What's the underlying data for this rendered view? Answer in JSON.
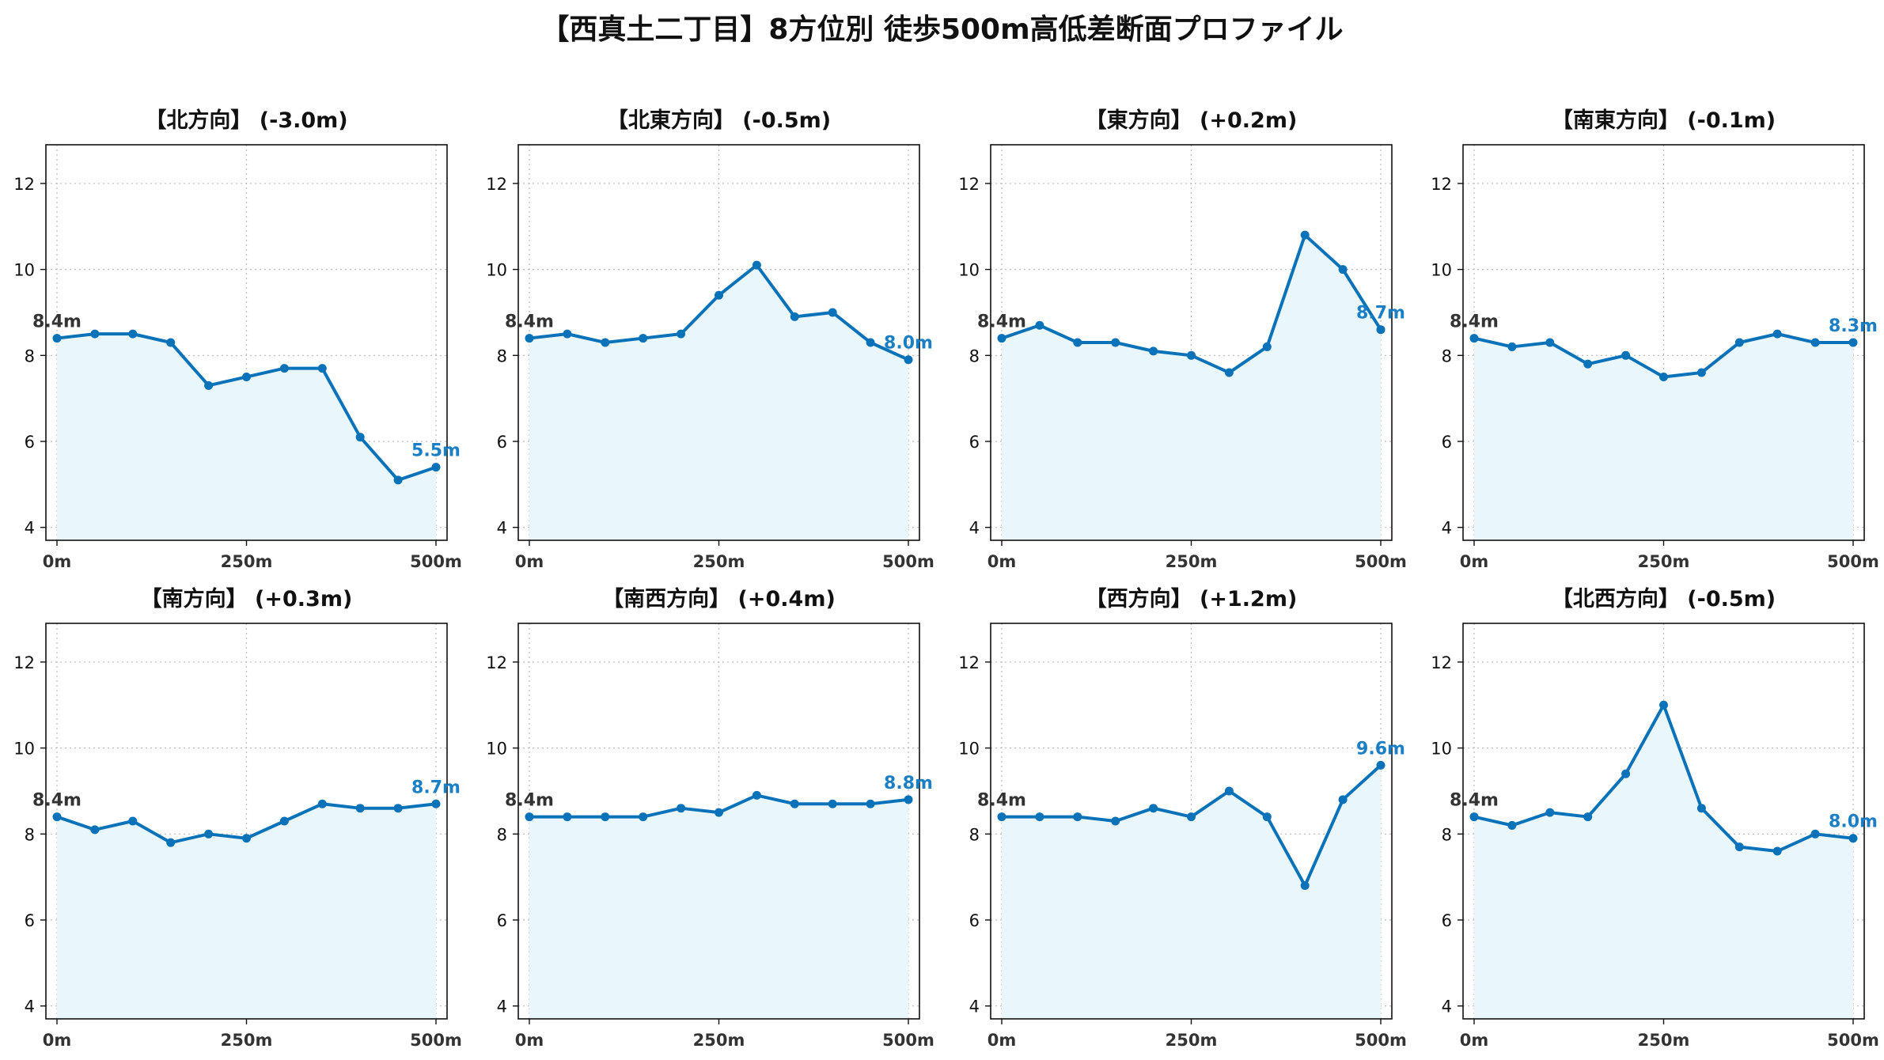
{
  "title": "【西真土二丁目】8方位別 徒歩500m高低差断面プロファイル",
  "colors": {
    "line": "#0a72b8",
    "fill": "#e9f6fb",
    "start_label": "#333333",
    "end_label": "#1a7fc4",
    "grid": "#bbbbbb"
  },
  "chart_data": [
    {
      "type": "line",
      "title": "【北方向】 (-3.0m)",
      "x": [
        0,
        50,
        100,
        150,
        200,
        250,
        300,
        350,
        400,
        450,
        500
      ],
      "y": [
        8.4,
        8.5,
        8.5,
        8.3,
        7.3,
        7.5,
        7.7,
        7.7,
        6.1,
        5.1,
        5.4
      ],
      "start_label": "8.4m",
      "end_label": "5.5m",
      "xticks": [
        "0m",
        "250m",
        "500m"
      ],
      "yticks": [
        4,
        6,
        8,
        10,
        12
      ],
      "ylim": [
        3.7,
        12.9
      ],
      "xlim": [
        0,
        500
      ],
      "grid": true
    },
    {
      "type": "line",
      "title": "【北東方向】 (-0.5m)",
      "x": [
        0,
        50,
        100,
        150,
        200,
        250,
        300,
        350,
        400,
        450,
        500
      ],
      "y": [
        8.4,
        8.5,
        8.3,
        8.4,
        8.5,
        9.4,
        10.1,
        8.9,
        9.0,
        8.3,
        7.9
      ],
      "start_label": "8.4m",
      "end_label": "8.0m",
      "xticks": [
        "0m",
        "250m",
        "500m"
      ],
      "yticks": [
        4,
        6,
        8,
        10,
        12
      ],
      "ylim": [
        3.7,
        12.9
      ],
      "xlim": [
        0,
        500
      ],
      "grid": true
    },
    {
      "type": "line",
      "title": "【東方向】 (+0.2m)",
      "x": [
        0,
        50,
        100,
        150,
        200,
        250,
        300,
        350,
        400,
        450,
        500
      ],
      "y": [
        8.4,
        8.7,
        8.3,
        8.3,
        8.1,
        8.0,
        7.6,
        8.2,
        10.8,
        10.0,
        8.6
      ],
      "start_label": "8.4m",
      "end_label": "8.7m",
      "xticks": [
        "0m",
        "250m",
        "500m"
      ],
      "yticks": [
        4,
        6,
        8,
        10,
        12
      ],
      "ylim": [
        3.7,
        12.9
      ],
      "xlim": [
        0,
        500
      ],
      "grid": true
    },
    {
      "type": "line",
      "title": "【南東方向】 (-0.1m)",
      "x": [
        0,
        50,
        100,
        150,
        200,
        250,
        300,
        350,
        400,
        450,
        500
      ],
      "y": [
        8.4,
        8.2,
        8.3,
        7.8,
        8.0,
        7.5,
        7.6,
        8.3,
        8.5,
        8.3,
        8.3
      ],
      "start_label": "8.4m",
      "end_label": "8.3m",
      "xticks": [
        "0m",
        "250m",
        "500m"
      ],
      "yticks": [
        4,
        6,
        8,
        10,
        12
      ],
      "ylim": [
        3.7,
        12.9
      ],
      "xlim": [
        0,
        500
      ],
      "grid": true
    },
    {
      "type": "line",
      "title": "【南方向】 (+0.3m)",
      "x": [
        0,
        50,
        100,
        150,
        200,
        250,
        300,
        350,
        400,
        450,
        500
      ],
      "y": [
        8.4,
        8.1,
        8.3,
        7.8,
        8.0,
        7.9,
        8.3,
        8.7,
        8.6,
        8.6,
        8.7
      ],
      "start_label": "8.4m",
      "end_label": "8.7m",
      "xticks": [
        "0m",
        "250m",
        "500m"
      ],
      "yticks": [
        4,
        6,
        8,
        10,
        12
      ],
      "ylim": [
        3.7,
        12.9
      ],
      "xlim": [
        0,
        500
      ],
      "grid": true
    },
    {
      "type": "line",
      "title": "【南西方向】 (+0.4m)",
      "x": [
        0,
        50,
        100,
        150,
        200,
        250,
        300,
        350,
        400,
        450,
        500
      ],
      "y": [
        8.4,
        8.4,
        8.4,
        8.4,
        8.6,
        8.5,
        8.9,
        8.7,
        8.7,
        8.7,
        8.8
      ],
      "start_label": "8.4m",
      "end_label": "8.8m",
      "xticks": [
        "0m",
        "250m",
        "500m"
      ],
      "yticks": [
        4,
        6,
        8,
        10,
        12
      ],
      "ylim": [
        3.7,
        12.9
      ],
      "xlim": [
        0,
        500
      ],
      "grid": true
    },
    {
      "type": "line",
      "title": "【西方向】 (+1.2m)",
      "x": [
        0,
        50,
        100,
        150,
        200,
        250,
        300,
        350,
        400,
        450,
        500
      ],
      "y": [
        8.4,
        8.4,
        8.4,
        8.3,
        8.6,
        8.4,
        9.0,
        8.4,
        6.8,
        8.8,
        9.6
      ],
      "start_label": "8.4m",
      "end_label": "9.6m",
      "xticks": [
        "0m",
        "250m",
        "500m"
      ],
      "yticks": [
        4,
        6,
        8,
        10,
        12
      ],
      "ylim": [
        3.7,
        12.9
      ],
      "xlim": [
        0,
        500
      ],
      "grid": true
    },
    {
      "type": "line",
      "title": "【北西方向】 (-0.5m)",
      "x": [
        0,
        50,
        100,
        150,
        200,
        250,
        300,
        350,
        400,
        450,
        500
      ],
      "y": [
        8.4,
        8.2,
        8.5,
        8.4,
        9.4,
        11.0,
        8.6,
        7.7,
        7.6,
        8.0,
        7.9
      ],
      "start_label": "8.4m",
      "end_label": "8.0m",
      "xticks": [
        "0m",
        "250m",
        "500m"
      ],
      "yticks": [
        4,
        6,
        8,
        10,
        12
      ],
      "ylim": [
        3.7,
        12.9
      ],
      "xlim": [
        0,
        500
      ],
      "grid": true
    }
  ]
}
